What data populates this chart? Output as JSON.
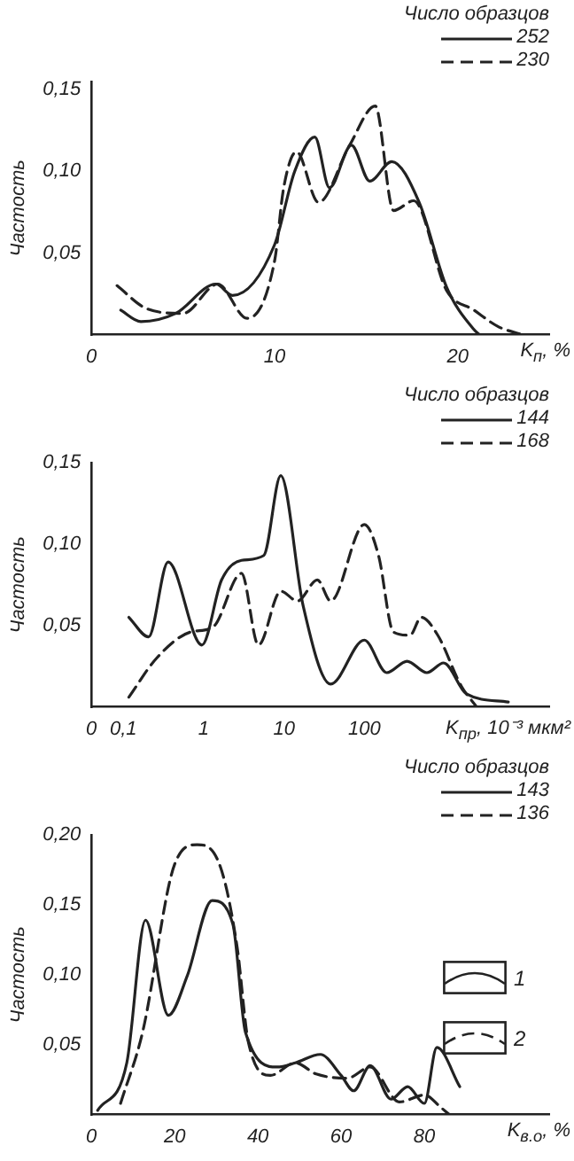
{
  "chart_data": [
    {
      "type": "line",
      "ylabel": "Частость",
      "xlabel": "K$_{п}$, %",
      "legend_title": "Число образцов",
      "legend": "top right",
      "marker": "none",
      "grid": false,
      "xlim": [
        0,
        25
      ],
      "xticks": [
        0,
        10,
        20
      ],
      "ylim": [
        0,
        0.155
      ],
      "yticks": [
        {
          "value": 0.05,
          "label": "0,05"
        },
        {
          "value": 0.1,
          "label": "0,10"
        },
        {
          "value": 0.15,
          "label": "0,15"
        }
      ],
      "series": [
        {
          "name": "252",
          "color": "#222222",
          "line_style": "solid",
          "x": [
            1.6,
            2.7,
            4.6,
            6.8,
            7.7,
            10,
            11.1,
            12.2,
            13,
            14.2,
            15.2,
            16.4,
            17.9,
            19.4,
            20.9,
            21.2
          ],
          "values": [
            0.015,
            0.008,
            0.013,
            0.031,
            0.024,
            0.055,
            0.1,
            0.121,
            0.09,
            0.116,
            0.094,
            0.106,
            0.081,
            0.029,
            0.003,
            0
          ]
        },
        {
          "name": "230",
          "color": "#222222",
          "line_style": "dashed",
          "x": [
            1.4,
            3,
            5,
            6.9,
            8.5,
            10,
            10.5,
            11.2,
            12.4,
            14.1,
            15.5,
            16.5,
            17.6,
            19.4,
            20.9,
            22.2,
            23.5
          ],
          "values": [
            0.03,
            0.016,
            0.013,
            0.031,
            0.01,
            0.045,
            0.09,
            0.112,
            0.081,
            0.116,
            0.14,
            0.076,
            0.082,
            0.027,
            0.015,
            0.005,
            0
          ]
        }
      ]
    },
    {
      "type": "line",
      "ylabel": "Частость",
      "xlabel": "K$_{пр}$, 10⁻³ мкм²",
      "legend_title": "Число образцов",
      "legend": "top right",
      "marker": "none",
      "grid": false,
      "log": "x",
      "xlim": [
        0.04,
        20000
      ],
      "xticks": [
        {
          "value": 0.04,
          "label": "0"
        },
        {
          "value": 0.1,
          "label": "0,1"
        },
        1,
        10,
        100
      ],
      "ylim": [
        0,
        0.15
      ],
      "yticks": [
        {
          "value": 0.05,
          "label": "0,05"
        },
        {
          "value": 0.1,
          "label": "0,10"
        },
        {
          "value": 0.15,
          "label": "0,15"
        }
      ],
      "series": [
        {
          "name": "144",
          "color": "#222222",
          "line_style": "solid",
          "x": [
            0.117,
            0.206,
            0.36,
            0.95,
            1.67,
            2.95,
            5.6,
            9.1,
            17.3,
            38,
            100,
            190,
            340,
            600,
            970,
            1860,
            6200
          ],
          "values": [
            0.055,
            0.043,
            0.089,
            0.038,
            0.078,
            0.09,
            0.093,
            0.142,
            0.062,
            0.014,
            0.041,
            0.021,
            0.028,
            0.021,
            0.027,
            0.008,
            0.003
          ]
        },
        {
          "name": "168",
          "color": "#222222",
          "line_style": "dashed",
          "x": [
            0.117,
            0.26,
            0.69,
            1.3,
            2.95,
            4.8,
            9.1,
            14.7,
            26,
            38,
            100,
            150,
            230,
            370,
            510,
            820,
            1600,
            2500
          ],
          "values": [
            0.006,
            0.03,
            0.046,
            0.049,
            0.082,
            0.038,
            0.071,
            0.065,
            0.078,
            0.065,
            0.112,
            0.093,
            0.046,
            0.044,
            0.055,
            0.044,
            0.013,
            0
          ]
        }
      ]
    },
    {
      "type": "line",
      "ylabel": "Частость",
      "xlabel": "K$_{в.о}$, %",
      "legend_title": "Число образцов",
      "legend": "top right",
      "marker": "none",
      "grid": false,
      "xlim": [
        0,
        110
      ],
      "xticks": [
        0,
        20,
        40,
        60,
        80
      ],
      "ylim": [
        0,
        0.2
      ],
      "yticks": [
        {
          "value": 0.05,
          "label": "0,05"
        },
        {
          "value": 0.1,
          "label": "0,10"
        },
        {
          "value": 0.15,
          "label": "0,15"
        },
        {
          "value": 0.2,
          "label": "0,20"
        }
      ],
      "annotations": [
        "1",
        "2"
      ],
      "series": [
        {
          "name": "143",
          "color": "#222222",
          "line_style": "solid",
          "x": [
            1.5,
            8.5,
            13,
            18.5,
            23,
            29,
            34,
            37,
            44.6,
            49,
            55,
            60,
            63,
            67,
            72,
            76,
            80,
            83,
            88.5
          ],
          "values": [
            0.003,
            0.037,
            0.139,
            0.071,
            0.099,
            0.153,
            0.136,
            0.059,
            0.034,
            0.037,
            0.043,
            0.028,
            0.017,
            0.035,
            0.011,
            0.02,
            0.008,
            0.048,
            0.02
          ]
        },
        {
          "name": "136",
          "color": "#222222",
          "line_style": "dashed",
          "x": [
            7,
            12.3,
            20,
            25.4,
            31,
            35,
            37.7,
            43,
            49,
            54,
            61.5,
            67,
            74,
            80,
            84,
            86
          ],
          "values": [
            0.008,
            0.059,
            0.179,
            0.193,
            0.177,
            0.12,
            0.052,
            0.028,
            0.037,
            0.029,
            0.026,
            0.034,
            0.009,
            0.014,
            0.005,
            0
          ]
        }
      ]
    }
  ]
}
